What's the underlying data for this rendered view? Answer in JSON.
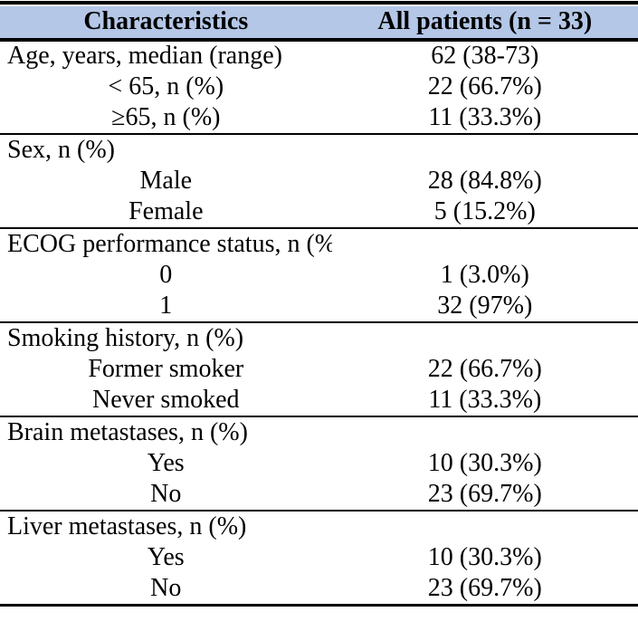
{
  "colors": {
    "header_bg": "#b4c7e7",
    "rule": "#000000",
    "text": "#000000",
    "page_bg": "#ffffff"
  },
  "table": {
    "header": {
      "col1": "Characteristics",
      "col2": "All patients (n = 33)"
    },
    "rows": [
      {
        "label": "Age, years, median (range)",
        "value": "62 (38-73)"
      },
      {
        "label": "< 65, n (%)",
        "value": "22 (66.7%)"
      },
      {
        "label": "≥65, n (%)",
        "value": "11 (33.3%)"
      },
      {
        "label": "Sex, n (%)",
        "value": ""
      },
      {
        "label": "Male",
        "value": "28 (84.8%)"
      },
      {
        "label": "Female",
        "value": "5 (15.2%)"
      },
      {
        "label": "ECOG performance status, n (%)",
        "value": ""
      },
      {
        "label": "0",
        "value": "1 (3.0%)"
      },
      {
        "label": "1",
        "value": "32 (97%)"
      },
      {
        "label": "Smoking history, n (%)",
        "value": ""
      },
      {
        "label": "Former smoker",
        "value": "22 (66.7%)"
      },
      {
        "label": "Never smoked",
        "value": "11 (33.3%)"
      },
      {
        "label": "Brain metastases, n (%)",
        "value": ""
      },
      {
        "label": "Yes",
        "value": "10 (30.3%)"
      },
      {
        "label": "No",
        "value": "23 (69.7%)"
      },
      {
        "label": "Liver metastases, n (%)",
        "value": ""
      },
      {
        "label": "Yes",
        "value": "10 (30.3%)"
      },
      {
        "label": "No",
        "value": "23 (69.7%)"
      }
    ]
  }
}
